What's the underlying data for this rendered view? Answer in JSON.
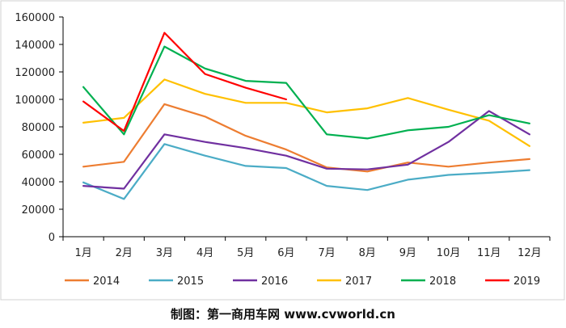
{
  "chart_data": {
    "type": "line",
    "title": "",
    "xlabel": "",
    "ylabel": "",
    "categories": [
      "1月",
      "2月",
      "3月",
      "4月",
      "5月",
      "6月",
      "7月",
      "8月",
      "9月",
      "10月",
      "11月",
      "12月"
    ],
    "ylim": [
      0,
      160000
    ],
    "yticks": [
      0,
      20000,
      40000,
      60000,
      80000,
      100000,
      120000,
      140000,
      160000
    ],
    "grid": false,
    "legend": "bottom",
    "series": [
      {
        "name": "2014",
        "color": "#ed7d31",
        "values": [
          51000,
          54500,
          96500,
          87500,
          73500,
          63500,
          50500,
          47500,
          54000,
          51000,
          54000,
          56500
        ]
      },
      {
        "name": "2015",
        "color": "#4bacc6",
        "values": [
          39500,
          27500,
          67500,
          59000,
          51500,
          50000,
          37000,
          34000,
          41500,
          45000,
          46500,
          48500
        ]
      },
      {
        "name": "2016",
        "color": "#7030a0",
        "values": [
          37000,
          35000,
          74500,
          69000,
          64500,
          59000,
          49500,
          49000,
          52500,
          69000,
          91500,
          74500
        ]
      },
      {
        "name": "2017",
        "color": "#ffc000",
        "values": [
          83000,
          86500,
          114500,
          104000,
          97500,
          97500,
          90500,
          93500,
          101000,
          92500,
          84500,
          66000
        ]
      },
      {
        "name": "2018",
        "color": "#00b050",
        "values": [
          109000,
          74500,
          138500,
          122500,
          113500,
          112000,
          74500,
          71500,
          77500,
          80000,
          88500,
          82500
        ]
      },
      {
        "name": "2019",
        "color": "#ff0000",
        "values": [
          98500,
          77000,
          148500,
          118500,
          108500,
          100000,
          null,
          null,
          null,
          null,
          null,
          null
        ]
      }
    ]
  },
  "footer": {
    "credit": "制图：第一商用车网 www.cvworld.cn"
  }
}
